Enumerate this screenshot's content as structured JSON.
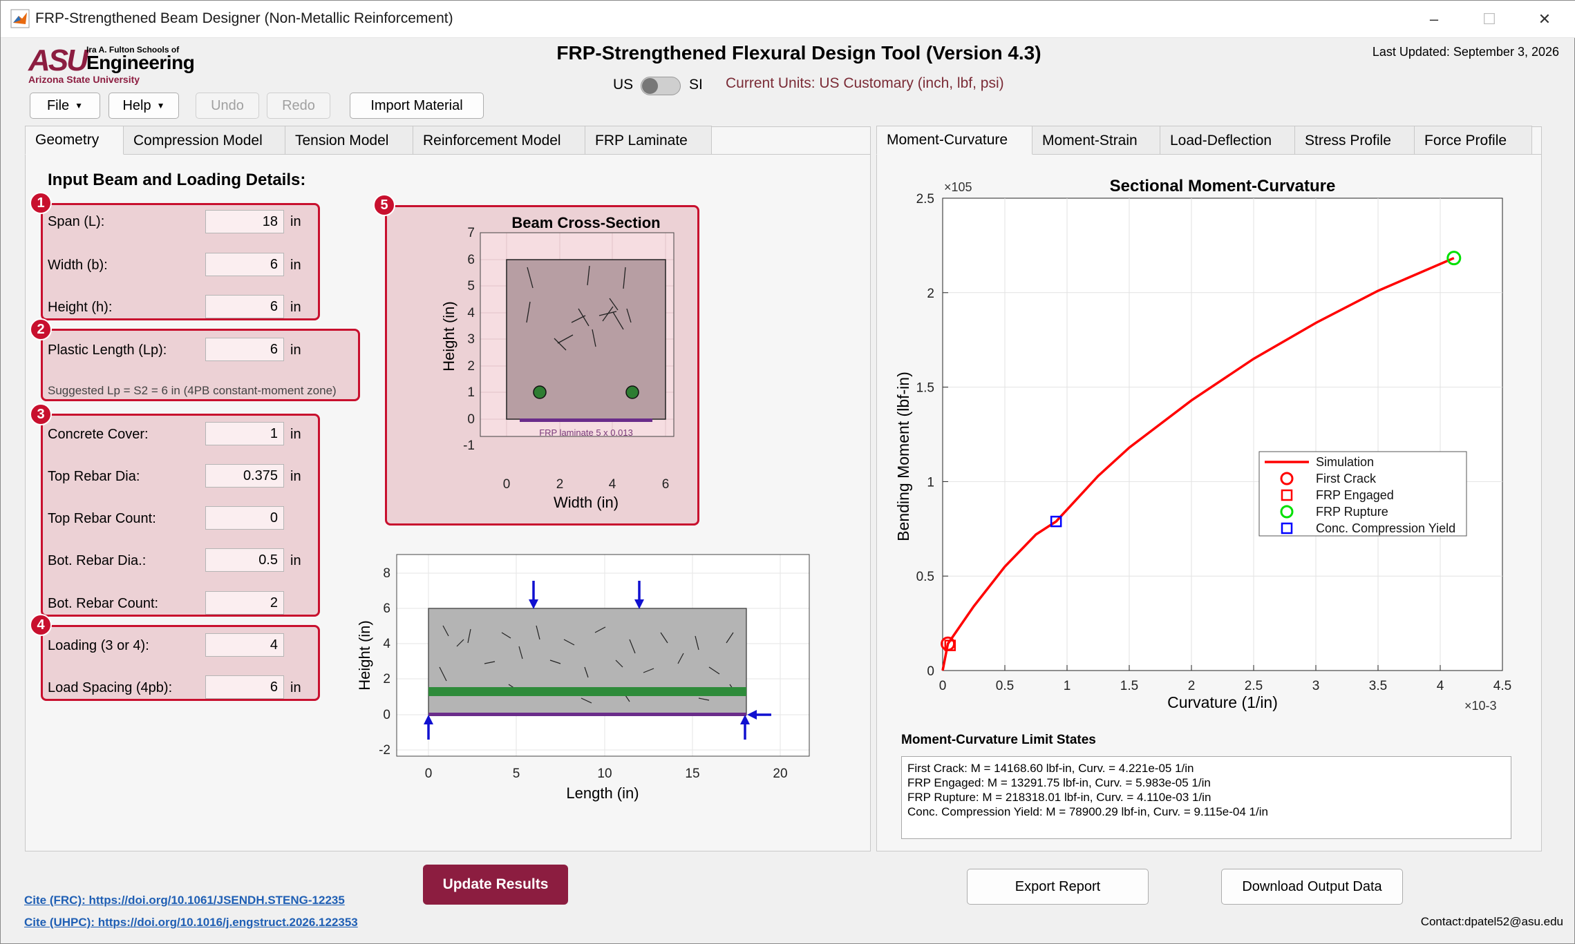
{
  "window": {
    "title": "FRP-Strengthened Beam Designer (Non-Metallic Reinforcement)",
    "controls": [
      "–",
      "☐",
      "✕"
    ]
  },
  "header": {
    "logo": {
      "mark": "ASU",
      "line1": "Ira A. Fulton Schools of",
      "line2": "Engineering",
      "line3": "Arizona State University"
    },
    "title": "FRP-Strengthened Flexural Design Tool (Version 4.3)",
    "last_updated": "Last Updated: September 3, 2026",
    "units_us": "US",
    "units_si": "SI",
    "current_units": "Current Units: US Customary (inch, lbf, psi)"
  },
  "toolbar": {
    "file": "File",
    "help": "Help",
    "undo": "Undo",
    "redo": "Redo",
    "import": "Import Material"
  },
  "left_tabs": [
    "Geometry",
    "Compression Model",
    "Tension Model",
    "Reinforcement Model",
    "FRP Laminate"
  ],
  "right_tabs": [
    "Moment-Curvature",
    "Moment-Strain",
    "Load-Deflection",
    "Stress Profile",
    "Force Profile"
  ],
  "geometry": {
    "section_title": "Input Beam and Loading Details:",
    "fields": {
      "span": {
        "label": "Span (L):",
        "value": "18",
        "unit": "in"
      },
      "width": {
        "label": "Width (b):",
        "value": "6",
        "unit": "in"
      },
      "height": {
        "label": "Height (h):",
        "value": "6",
        "unit": "in"
      },
      "plastic": {
        "label": "Plastic Length (Lp):",
        "value": "6",
        "unit": "in"
      },
      "plastic_hint": "Suggested Lp = S2 = 6 in (4PB constant-moment zone)",
      "cover": {
        "label": "Concrete Cover:",
        "value": "1",
        "unit": "in"
      },
      "top_dia": {
        "label": "Top Rebar Dia:",
        "value": "0.375",
        "unit": "in"
      },
      "top_count": {
        "label": "Top Rebar Count:",
        "value": "0",
        "unit": ""
      },
      "bot_dia": {
        "label": "Bot. Rebar Dia.:",
        "value": "0.5",
        "unit": "in"
      },
      "bot_count": {
        "label": "Bot. Rebar Count:",
        "value": "2",
        "unit": ""
      },
      "loading": {
        "label": "Loading (3 or 4):",
        "value": "4",
        "unit": ""
      },
      "load_spacing": {
        "label": "Load Spacing (4pb):",
        "value": "6",
        "unit": "in"
      }
    },
    "badges": [
      "1",
      "2",
      "3",
      "4",
      "5"
    ]
  },
  "cross_section_plot": {
    "title": "Beam Cross-Section",
    "xlabel": "Width (in)",
    "ylabel": "Height (in)",
    "xticks": [
      "0",
      "2",
      "4",
      "6"
    ],
    "yticks": [
      "7",
      "6",
      "5",
      "4",
      "3",
      "2",
      "1",
      "0",
      "-1"
    ],
    "frp_label": "FRP laminate  5 x 0.013"
  },
  "elevation_plot": {
    "xlabel": "Length (in)",
    "ylabel": "Height (in)",
    "xticks": [
      "0",
      "5",
      "10",
      "15",
      "20"
    ],
    "yticks": [
      "8",
      "6",
      "4",
      "2",
      "0",
      "-2"
    ]
  },
  "chart_data": {
    "type": "line",
    "title": "Sectional Moment-Curvature",
    "xlabel": "Curvature (1/in)",
    "ylabel": "Bending Moment (lbf-in)",
    "x_exponent": "×10-3",
    "y_exponent": "×105",
    "xlim": [
      0,
      0.0045
    ],
    "ylim": [
      0,
      250000
    ],
    "xticks": [
      "0",
      "0.5",
      "1",
      "1.5",
      "2",
      "2.5",
      "3",
      "3.5",
      "4",
      "4.5"
    ],
    "yticks": [
      "0",
      "0.5",
      "1",
      "1.5",
      "2",
      "2.5"
    ],
    "grid": true,
    "legend_position": "center-right",
    "series": [
      {
        "name": "Simulation",
        "color": "#ff0000",
        "x": [
          0,
          4.22e-05,
          0.00025,
          0.0005,
          0.00075,
          0.000912,
          0.00125,
          0.0015,
          0.002,
          0.0025,
          0.003,
          0.0035,
          0.00411
        ],
        "y": [
          0,
          14169,
          34000,
          55000,
          72000,
          78900,
          103000,
          118000,
          143000,
          165000,
          184000,
          201000,
          218318
        ]
      }
    ],
    "markers": [
      {
        "name": "First Crack",
        "shape": "circle",
        "color": "#ff0000",
        "x": 4.22e-05,
        "y": 14169
      },
      {
        "name": "FRP Engaged",
        "shape": "square",
        "color": "#ff0000",
        "x": 5.98e-05,
        "y": 13292
      },
      {
        "name": "FRP Rupture",
        "shape": "circle",
        "color": "#00e000",
        "x": 0.00411,
        "y": 218318
      },
      {
        "name": "Conc. Compression Yield",
        "shape": "square",
        "color": "#0000ff",
        "x": 0.000912,
        "y": 78900
      }
    ]
  },
  "limit_states": {
    "title": "Moment-Curvature Limit States",
    "lines": [
      "First Crack: M = 14168.60 lbf-in, Curv. = 4.221e-05 1/in",
      "FRP Engaged: M = 13291.75 lbf-in, Curv. = 5.983e-05 1/in",
      "FRP Rupture: M = 218318.01 lbf-in, Curv. = 4.110e-03 1/in",
      "Conc. Compression Yield: M = 78900.29 lbf-in, Curv. = 9.115e-04 1/in"
    ]
  },
  "actions": {
    "update": "Update Results",
    "export": "Export Report",
    "download": "Download Output Data"
  },
  "footer": {
    "cite_frc": "Cite (FRC): https://doi.org/10.1061/JSENDH.STENG-12235",
    "cite_uhpc": "Cite (UHPC): https://doi.org/10.1016/j.engstruct.2026.122353",
    "contact": "Contact:dpatel52@asu.edu"
  },
  "colors": {
    "asu_maroon": "#8c1d40",
    "badge_red": "#c8102e",
    "group_fill": "#ecd1d5",
    "frp_purple": "#6a2c8a",
    "rebar_green": "#2e7d32"
  }
}
